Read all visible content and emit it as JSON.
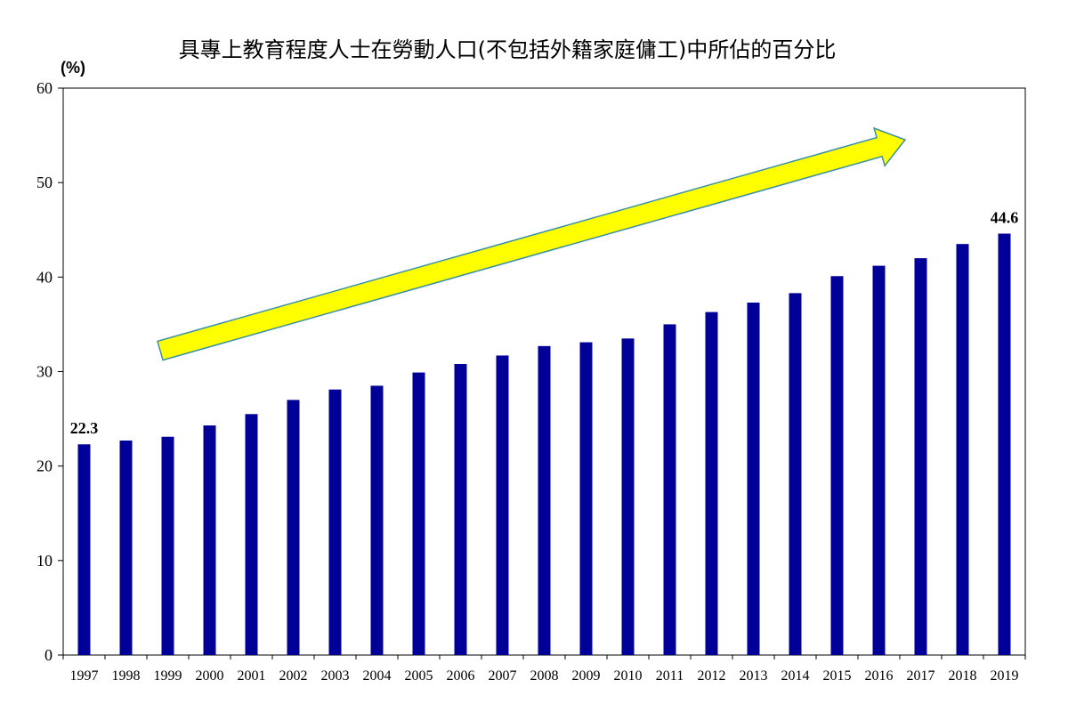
{
  "chart_data": {
    "type": "bar",
    "title": "具專上教育程度人士在勞動人口(不包括外籍家庭傭工)中所佔的百分比",
    "y_unit": "(%)",
    "xlabel": "",
    "ylabel": "",
    "ylim": [
      0,
      60
    ],
    "y_ticks": [
      0,
      10,
      20,
      30,
      40,
      50,
      60
    ],
    "grid": false,
    "categories": [
      "1997",
      "1998",
      "1999",
      "2000",
      "2001",
      "2002",
      "2003",
      "2004",
      "2005",
      "2006",
      "2007",
      "2008",
      "2009",
      "2010",
      "2011",
      "2012",
      "2013",
      "2014",
      "2015",
      "2016",
      "2017",
      "2018",
      "2019"
    ],
    "values": [
      22.3,
      22.7,
      23.1,
      24.3,
      25.5,
      27.0,
      28.1,
      28.5,
      29.9,
      30.8,
      31.7,
      32.7,
      33.1,
      33.5,
      35.0,
      36.3,
      37.3,
      38.3,
      40.1,
      41.2,
      42.0,
      43.5,
      44.6
    ],
    "data_labels": [
      {
        "category": "1997",
        "text": "22.3"
      },
      {
        "category": "2019",
        "text": "44.6"
      }
    ],
    "bar_color": "#000099",
    "arrow_fill": "#ffff00",
    "arrow_stroke": "#3a8fa8"
  }
}
